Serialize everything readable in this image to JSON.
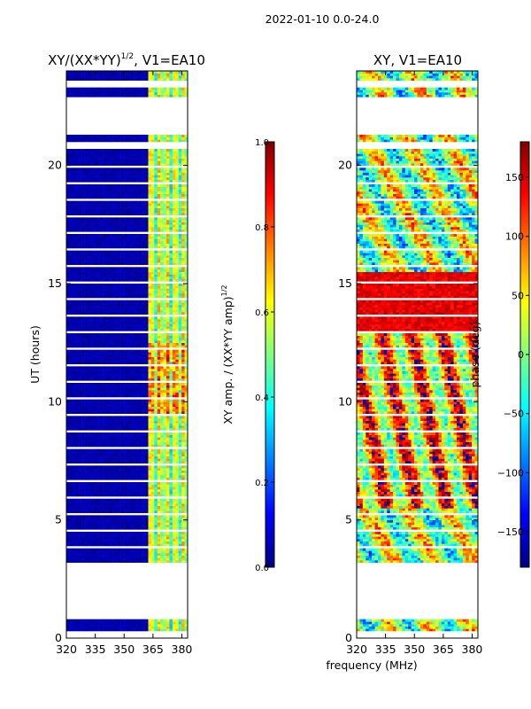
{
  "figure": {
    "suptitle": "2022-01-10 0.0-24.0",
    "xlabel": "frequency (MHz)",
    "ylabel": "UT (hours)"
  },
  "colors": {
    "jet": [
      "#00007f",
      "#0000ff",
      "#007fff",
      "#00ffff",
      "#7fff7f",
      "#ffff00",
      "#ff7f00",
      "#ff0000",
      "#7f0000"
    ],
    "white": "#ffffff"
  },
  "chart_data": [
    {
      "type": "heatmap",
      "title_main": "XY/(XX*YY)",
      "title_exp": "1/2",
      "title_suffix": ", V1=EA10",
      "xlabel": "frequency (MHz)",
      "ylabel": "UT (hours)",
      "xlim": [
        320,
        383
      ],
      "ylim": [
        0,
        24
      ],
      "xticks": [
        320,
        335,
        350,
        365,
        380
      ],
      "yticks": [
        0,
        5,
        10,
        15,
        20
      ],
      "colorbar": {
        "label_main": "XY amp. / (XX*YY amp)",
        "label_exp": "1/2",
        "min": 0.0,
        "max": 1.0,
        "ticks": [
          0.0,
          0.2,
          0.4,
          0.6,
          0.8,
          1.0
        ],
        "tick_labels": [
          "0.0",
          "0.2",
          "0.4",
          "0.6",
          "0.8",
          "1.0"
        ]
      },
      "data_gaps_hours": [
        [
          0.0,
          0.3
        ],
        [
          0.8,
          3.1
        ],
        [
          20.7,
          21.0
        ],
        [
          21.3,
          22.9
        ],
        [
          23.35,
          23.6
        ]
      ],
      "pattern": "low (~0.05) below 362 MHz; vertical bands 0.3-0.7 between 362 and 382 MHz, peaks ~0.8 near 10-12 h"
    },
    {
      "type": "heatmap",
      "title": "XY, V1=EA10",
      "xlabel": "frequency (MHz)",
      "ylabel": "",
      "xlim": [
        320,
        383
      ],
      "ylim": [
        0,
        24
      ],
      "xticks": [
        320,
        335,
        350,
        365,
        380
      ],
      "yticks": [
        0,
        5,
        10,
        15,
        20
      ],
      "colorbar": {
        "label": "phase (deg)",
        "min": -180,
        "max": 180,
        "ticks": [
          -150,
          -100,
          -50,
          0,
          50,
          100,
          150
        ],
        "tick_labels": [
          "−150",
          "−100",
          "−50",
          "0",
          "50",
          "100",
          "150"
        ]
      },
      "data_gaps_hours": [
        [
          0.0,
          0.3
        ],
        [
          0.8,
          3.1
        ],
        [
          20.7,
          21.0
        ],
        [
          21.3,
          22.9
        ],
        [
          23.35,
          23.6
        ]
      ],
      "pattern": "phase wraps -180..180; predominantly red/orange (~100-150 deg) near 13-15 h, mixed elsewhere"
    }
  ]
}
